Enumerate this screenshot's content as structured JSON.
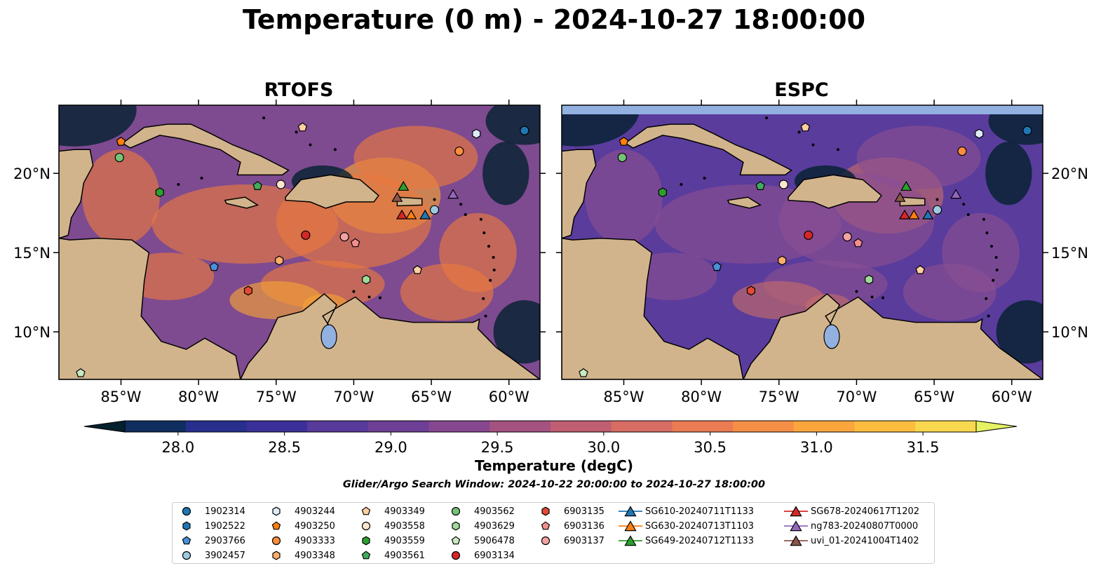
{
  "title": "Temperature (0 m) - 2024-10-27 18:00:00",
  "panels": [
    {
      "title": "RTOFS",
      "model": "rtofs",
      "colors": {
        "base": "#7e4a90",
        "warm": "#e8783f",
        "hot": "#f4a238",
        "edge": "#3a2a8a"
      }
    },
    {
      "title": "ESPC",
      "model": "espc",
      "colors": {
        "base": "#5a3c9c",
        "warm": "#8a4f92",
        "hot": "#c26a6a",
        "edge": "#2d2a7c"
      }
    }
  ],
  "axes": {
    "lon_ticks": [
      "85°W",
      "80°W",
      "75°W",
      "70°W",
      "65°W",
      "60°W"
    ],
    "lat_ticks": [
      "20°N",
      "15°N",
      "10°N"
    ],
    "lon_range": [
      -89,
      -58
    ],
    "lat_range": [
      7,
      24.3
    ]
  },
  "colorbar": {
    "label": "Temperature (degC)",
    "ticks": [
      "28.0",
      "28.5",
      "29.0",
      "29.5",
      "30.0",
      "30.5",
      "31.0",
      "31.5"
    ],
    "range": [
      27.75,
      31.75
    ],
    "colors": [
      "#03202e",
      "#0f2d5e",
      "#262f8c",
      "#3b2f9a",
      "#583a9a",
      "#6e3f96",
      "#874790",
      "#a4527f",
      "#c05e72",
      "#d76d63",
      "#eb7b53",
      "#f68f46",
      "#fba53d",
      "#fcbd3f",
      "#f7d84e",
      "#e5f263"
    ]
  },
  "search_window": "Glider/Argo Search Window: 2024-10-22 20:00:00 to 2024-10-27 18:00:00",
  "legend": [
    {
      "label": "1902314",
      "marker": "circle",
      "color": "#1f77b4",
      "lon": -59,
      "lat": 22.7
    },
    {
      "label": "1902522",
      "marker": "hexagon",
      "color": "#1f77b4",
      "lon": null,
      "lat": null
    },
    {
      "label": "2903766",
      "marker": "pentagon",
      "color": "#4a90d9",
      "lon": -79.0,
      "lat": 14.1
    },
    {
      "label": "3902457",
      "marker": "circle",
      "color": "#9ecae1",
      "lon": -64.8,
      "lat": 17.7
    },
    {
      "label": "4903244",
      "marker": "hexagon",
      "color": "#deebf7",
      "lon": -62.1,
      "lat": 22.5
    },
    {
      "label": "4903250",
      "marker": "pentagon",
      "color": "#ff7f0e",
      "lon": -85.0,
      "lat": 22.0
    },
    {
      "label": "4903333",
      "marker": "circle",
      "color": "#fd8d3c",
      "lon": -63.2,
      "lat": 21.4
    },
    {
      "label": "4903348",
      "marker": "hexagon",
      "color": "#fdae6b",
      "lon": -74.8,
      "lat": 14.5
    },
    {
      "label": "4903349",
      "marker": "pentagon",
      "color": "#fdd0a2",
      "lon": -73.3,
      "lat": 22.9
    },
    {
      "label": "4903558",
      "marker": "circle",
      "color": "#fee6ce",
      "lon": -74.7,
      "lat": 19.3
    },
    {
      "label": "4903559",
      "marker": "hexagon",
      "color": "#2ca02c",
      "lon": -82.5,
      "lat": 18.8
    },
    {
      "label": "4903561",
      "marker": "pentagon",
      "color": "#41ab5d",
      "lon": -76.2,
      "lat": 19.2
    },
    {
      "label": "4903562",
      "marker": "circle",
      "color": "#74c476",
      "lon": -85.1,
      "lat": 21.0
    },
    {
      "label": "4903629",
      "marker": "hexagon",
      "color": "#a1d99b",
      "lon": -69.2,
      "lat": 13.3
    },
    {
      "label": "5906478",
      "marker": "pentagon",
      "color": "#c7e9c0",
      "lon": -87.6,
      "lat": 7.4
    },
    {
      "label": "6903134",
      "marker": "circle",
      "color": "#d62728",
      "lon": -73.1,
      "lat": 16.1
    },
    {
      "label": "6903135",
      "marker": "hexagon",
      "color": "#e34a33",
      "lon": -76.8,
      "lat": 12.6
    },
    {
      "label": "6903136",
      "marker": "pentagon",
      "color": "#f28e8e",
      "lon": -69.9,
      "lat": 15.6
    },
    {
      "label": "6903137",
      "marker": "circle",
      "color": "#f4a3a3",
      "lon": -70.6,
      "lat": 16.0
    },
    {
      "label": "SG610-20240711T1133",
      "marker": "triangle",
      "color": "#1f77b4",
      "lon": -65.4,
      "lat": 17.4
    },
    {
      "label": "SG630-20240713T1103",
      "marker": "triangle",
      "color": "#ff7f0e",
      "lon": -66.3,
      "lat": 17.4
    },
    {
      "label": "SG649-20240712T1133",
      "marker": "triangle",
      "color": "#2ca02c",
      "lon": -66.8,
      "lat": 19.2
    },
    {
      "label": "SG678-20240617T1202",
      "marker": "triangle",
      "color": "#d62728",
      "lon": -66.9,
      "lat": 17.4
    },
    {
      "label": "ng783-20240807T0000",
      "marker": "triangle",
      "color": "#9467bd",
      "lon": -63.6,
      "lat": 18.7
    },
    {
      "label": "uvi_01-20241004T1402",
      "marker": "triangle",
      "color": "#8c564b",
      "lon": -67.2,
      "lat": 18.5
    }
  ],
  "extra_markers": [
    {
      "marker": "pentagon",
      "color": "#fdd0a2",
      "lon": -65.9,
      "lat": 13.9
    }
  ]
}
